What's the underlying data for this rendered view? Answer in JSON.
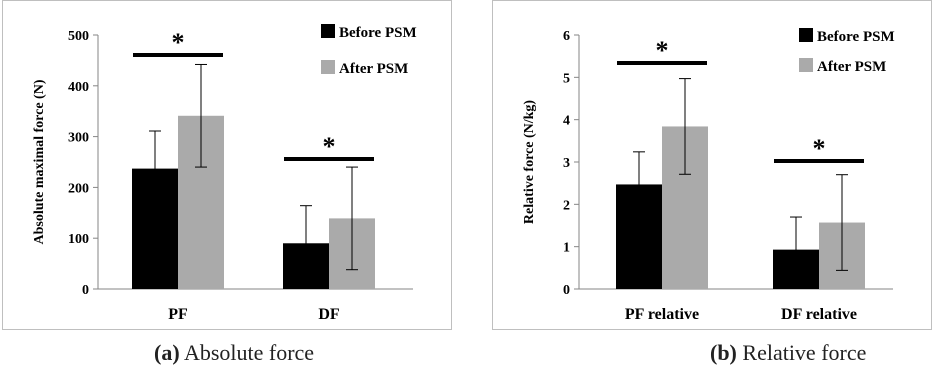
{
  "chart_data": [
    {
      "type": "bar",
      "panel_id": "a",
      "caption_label": "(a)",
      "caption_text": "Absolute force",
      "categories": [
        "PF",
        "DF"
      ],
      "series": [
        {
          "name": "Before PSM",
          "values": [
            237,
            90
          ],
          "errors": [
            74,
            74
          ],
          "color": "#000000"
        },
        {
          "name": "After PSM",
          "values": [
            341,
            139
          ],
          "errors": [
            101,
            101
          ],
          "color": "#aaaaaa"
        }
      ],
      "ylabel": "Absolute maximal force (N)",
      "ylim": [
        0,
        500
      ],
      "yticks": [
        0,
        100,
        200,
        300,
        400,
        500
      ],
      "significance": [
        "*",
        "*"
      ],
      "legend_position": "top-right",
      "grid": false
    },
    {
      "type": "bar",
      "panel_id": "b",
      "caption_label": "(b)",
      "caption_text": "Relative force",
      "categories": [
        "PF relative",
        "DF relative"
      ],
      "series": [
        {
          "name": "Before PSM",
          "values": [
            2.47,
            0.93
          ],
          "errors": [
            0.77,
            0.77
          ],
          "color": "#000000"
        },
        {
          "name": "After PSM",
          "values": [
            3.84,
            1.57
          ],
          "errors": [
            1.13,
            1.13
          ],
          "color": "#aaaaaa"
        }
      ],
      "ylabel": "Relative force (N/kg)",
      "ylim": [
        0,
        6
      ],
      "yticks": [
        0,
        1,
        2,
        3,
        4,
        5,
        6
      ],
      "significance": [
        "*",
        "*"
      ],
      "legend_position": "top-right",
      "grid": false
    }
  ]
}
